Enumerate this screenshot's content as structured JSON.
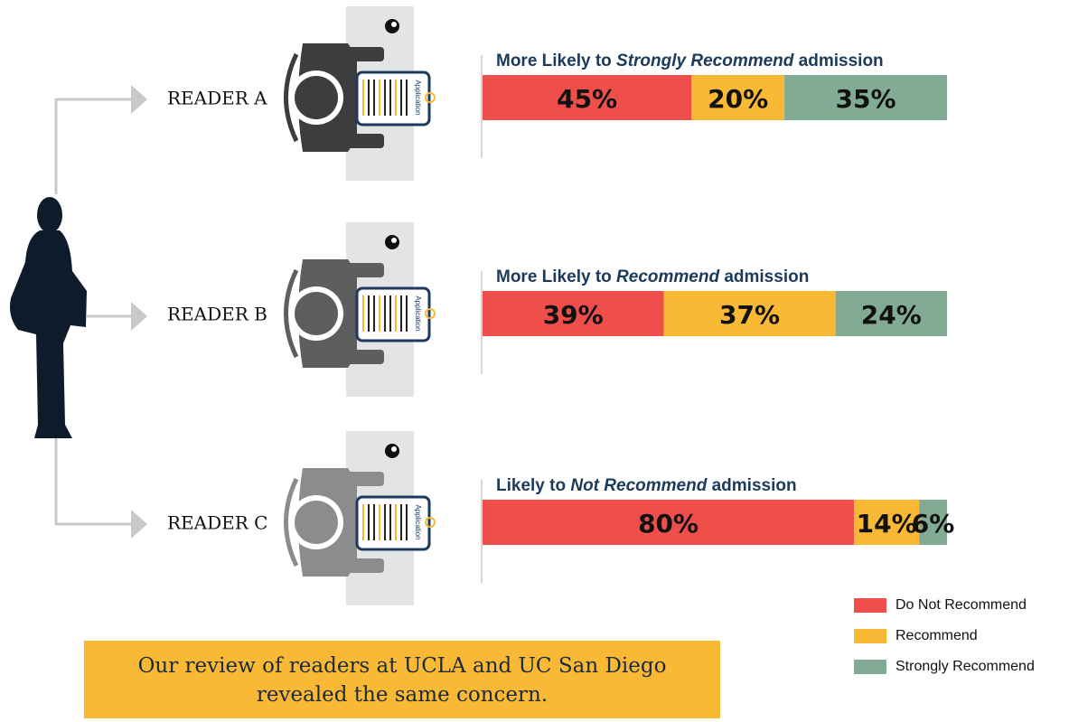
{
  "chart_data": {
    "type": "bar",
    "orientation": "horizontal",
    "stacked": true,
    "categories": [
      "READER A",
      "READER B",
      "READER C"
    ],
    "bar_titles": [
      {
        "before": "More Likely to ",
        "emphasis": "Strongly Recommend",
        "after": " admission"
      },
      {
        "before": "More Likely to ",
        "emphasis": "Recommend",
        "after": " admission"
      },
      {
        "before": "Likely to ",
        "emphasis": "Not Recommend",
        "after": " admission"
      }
    ],
    "xlim": [
      0,
      100
    ],
    "series": [
      {
        "name": "Do Not Recommend",
        "color": "#ef4e4b",
        "values": [
          45,
          39,
          80
        ],
        "value_labels": [
          "45%",
          "39%",
          "80%"
        ]
      },
      {
        "name": "Recommend",
        "color": "#f9b934",
        "values": [
          20,
          37,
          14
        ],
        "value_labels": [
          "20%",
          "37%",
          "14%"
        ]
      },
      {
        "name": "Strongly Recommend",
        "color": "#82ab96",
        "values": [
          35,
          24,
          6
        ],
        "value_labels": [
          "35%",
          "24%",
          "6%"
        ]
      }
    ],
    "clipboard_label": "Application",
    "note": [
      "Our review of readers at UCLA and UC San Diego",
      "revealed the same concern."
    ]
  }
}
